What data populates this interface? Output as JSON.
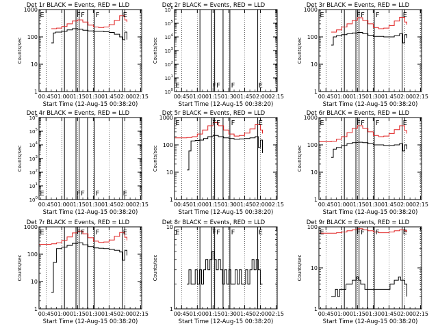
{
  "figure": {
    "xlabel": "Start Time (12-Aug-15 00:38:20)",
    "ylabel": "Counts/sec",
    "x_ticks": [
      "00:45",
      "01:00",
      "01:15",
      "01:30",
      "01:45",
      "02:00",
      "02:15"
    ],
    "x_tick_minutes": [
      45,
      60,
      75,
      90,
      105,
      120,
      135
    ],
    "x_range_minutes": [
      38.3,
      136
    ],
    "event_line_minutes": [
      62.5,
      73.5,
      76.5,
      84.5,
      91.0,
      117.5
    ],
    "event_letters": [
      {
        "letter": "E",
        "minute": 38.5
      },
      {
        "letter": "F",
        "minute": 73.5
      },
      {
        "letter": "F",
        "minute": 77.5
      },
      {
        "letter": "F",
        "minute": 91.5
      },
      {
        "letter": "E",
        "minute": 117.5
      }
    ],
    "colors": {
      "events": "#000000",
      "lld": "#e02020",
      "axes": "#000000"
    }
  },
  "chart_data": [
    {
      "type": "line",
      "title": "Det 1r BLACK = Events, RED = LLD",
      "ylabel": "Counts/sec",
      "xlabel": "Start Time (12-Aug-15 00:38:20)",
      "yscale": "log",
      "ylim": [
        1,
        1000
      ],
      "y_tick_labels": [
        "1",
        "10",
        "100",
        "1000"
      ],
      "series": [
        {
          "name": "Events",
          "color": "#000000",
          "x": [
            50,
            52,
            54,
            60,
            65,
            70,
            75,
            80,
            85,
            90,
            95,
            100,
            105,
            110,
            115,
            118,
            120,
            122
          ],
          "y": [
            60,
            140,
            150,
            160,
            180,
            200,
            190,
            175,
            165,
            160,
            160,
            155,
            145,
            125,
            100,
            80,
            150,
            80
          ]
        },
        {
          "name": "LLD",
          "color": "#e02020",
          "x": [
            50,
            55,
            60,
            65,
            70,
            75,
            80,
            85,
            90,
            95,
            100,
            105,
            110,
            115,
            120,
            122
          ],
          "y": [
            200,
            210,
            240,
            300,
            380,
            420,
            350,
            270,
            230,
            220,
            230,
            280,
            400,
            600,
            420,
            350
          ]
        }
      ]
    },
    {
      "type": "line",
      "title": "Det 2r BLACK = Events, RED = LLD",
      "ylabel": "Counts/sec",
      "xlabel": "Start Time (12-Aug-15 00:38:20)",
      "yscale": "log",
      "ylim": [
        1,
        1000000
      ],
      "y_tick_labels": [
        "10^0",
        "10^1",
        "10^2",
        "10^3",
        "10^4",
        "10^5",
        "10^6"
      ],
      "series": []
    },
    {
      "type": "line",
      "title": "Det 3r BLACK = Events, RED = LLD",
      "ylabel": "Counts/sec",
      "xlabel": "Start Time (12-Aug-15 00:38:20)",
      "yscale": "log",
      "ylim": [
        1,
        1000
      ],
      "y_tick_labels": [
        "1",
        "10",
        "100",
        "1000"
      ],
      "series": [
        {
          "name": "Events",
          "color": "#000000",
          "x": [
            50,
            52,
            55,
            60,
            65,
            70,
            75,
            80,
            85,
            90,
            95,
            100,
            105,
            110,
            115,
            118,
            120,
            122
          ],
          "y": [
            50,
            100,
            110,
            120,
            130,
            140,
            145,
            130,
            115,
            105,
            105,
            100,
            100,
            110,
            130,
            60,
            120,
            90
          ]
        },
        {
          "name": "LLD",
          "color": "#e02020",
          "x": [
            50,
            55,
            60,
            65,
            70,
            75,
            80,
            85,
            90,
            95,
            100,
            105,
            110,
            115,
            120,
            122
          ],
          "y": [
            150,
            180,
            230,
            300,
            400,
            500,
            400,
            300,
            220,
            200,
            210,
            260,
            380,
            520,
            350,
            280
          ]
        }
      ]
    },
    {
      "type": "line",
      "title": "Det 4r BLACK = Events, RED = LLD",
      "ylabel": "Counts/sec",
      "xlabel": "Start Time (12-Aug-15 00:38:20)",
      "yscale": "log",
      "ylim": [
        1,
        1000000
      ],
      "y_tick_labels": [
        "10^0",
        "10^1",
        "10^2",
        "10^3",
        "10^4",
        "10^5",
        "10^6"
      ],
      "series": []
    },
    {
      "type": "line",
      "title": "Det 5r BLACK = Events, RED = LLD",
      "ylabel": "Counts/sec",
      "xlabel": "Start Time (12-Aug-15 00:38:20)",
      "yscale": "log",
      "ylim": [
        1,
        1000
      ],
      "y_tick_labels": [
        "1",
        "10",
        "100",
        "1000"
      ],
      "series": [
        {
          "name": "Events",
          "color": "#000000",
          "x": [
            50,
            52,
            54,
            58,
            62,
            66,
            70,
            75,
            80,
            85,
            90,
            95,
            100,
            105,
            110,
            115,
            118,
            120,
            122
          ],
          "y": [
            12,
            60,
            140,
            145,
            150,
            170,
            200,
            220,
            200,
            180,
            170,
            160,
            165,
            170,
            180,
            200,
            80,
            150,
            50
          ]
        },
        {
          "name": "LLD",
          "color": "#e02020",
          "x": [
            38.5,
            45,
            50,
            55,
            60,
            65,
            70,
            75,
            80,
            85,
            90,
            95,
            100,
            105,
            110,
            115,
            120,
            122
          ],
          "y": [
            180,
            180,
            185,
            200,
            250,
            350,
            500,
            650,
            500,
            350,
            250,
            210,
            220,
            270,
            380,
            550,
            350,
            260
          ]
        }
      ]
    },
    {
      "type": "line",
      "title": "Det 6r BLACK = Events, RED = LLD",
      "ylabel": "Counts/sec",
      "xlabel": "Start Time (12-Aug-15 00:38:20)",
      "yscale": "log",
      "ylim": [
        1,
        1000
      ],
      "y_tick_labels": [
        "1",
        "10",
        "100",
        "1000"
      ],
      "series": [
        {
          "name": "Events",
          "color": "#000000",
          "x": [
            50,
            52,
            55,
            60,
            65,
            70,
            75,
            80,
            85,
            90,
            95,
            100,
            105,
            110,
            115,
            118,
            120,
            122
          ],
          "y": [
            35,
            70,
            80,
            95,
            110,
            120,
            125,
            120,
            110,
            100,
            100,
            95,
            95,
            100,
            110,
            60,
            100,
            70
          ]
        },
        {
          "name": "LLD",
          "color": "#e02020",
          "x": [
            38.5,
            45,
            50,
            55,
            60,
            65,
            70,
            75,
            80,
            85,
            90,
            95,
            100,
            105,
            110,
            115,
            120,
            122
          ],
          "y": [
            130,
            130,
            135,
            160,
            200,
            280,
            400,
            500,
            400,
            300,
            220,
            200,
            210,
            260,
            360,
            500,
            330,
            260
          ]
        }
      ]
    },
    {
      "type": "line",
      "title": "Det 7r BLACK = Events, RED = LLD",
      "ylabel": "Counts/sec",
      "xlabel": "Start Time (12-Aug-15 00:38:20)",
      "yscale": "log",
      "ylim": [
        1,
        1000
      ],
      "y_tick_labels": [
        "1",
        "10",
        "100",
        "1000"
      ],
      "series": [
        {
          "name": "Events",
          "color": "#000000",
          "x": [
            50,
            52,
            55,
            60,
            65,
            70,
            75,
            80,
            85,
            90,
            95,
            100,
            105,
            110,
            115,
            118,
            120,
            122
          ],
          "y": [
            4,
            50,
            160,
            180,
            210,
            250,
            260,
            220,
            190,
            170,
            165,
            160,
            150,
            140,
            120,
            60,
            140,
            90
          ]
        },
        {
          "name": "LLD",
          "color": "#e02020",
          "x": [
            38.5,
            45,
            50,
            55,
            60,
            65,
            70,
            75,
            80,
            85,
            90,
            95,
            100,
            105,
            110,
            115,
            120,
            122
          ],
          "y": [
            230,
            230,
            240,
            260,
            320,
            430,
            600,
            700,
            560,
            400,
            300,
            270,
            280,
            330,
            450,
            620,
            420,
            320
          ]
        }
      ]
    },
    {
      "type": "line",
      "title": "Det 8r BLACK = Events, RED = LLD",
      "ylabel": "Counts/sec",
      "xlabel": "Start Time (12-Aug-15 00:38:20)",
      "yscale": "log",
      "ylim": [
        1,
        10
      ],
      "y_tick_labels": [
        "1",
        "10"
      ],
      "series": [
        {
          "name": "Events",
          "color": "#000000",
          "x": [
            50,
            52,
            54,
            56,
            58,
            60,
            62,
            64,
            66,
            68,
            70,
            72,
            74,
            76,
            78,
            80,
            82,
            84,
            86,
            88,
            90,
            92,
            94,
            96,
            98,
            100,
            102,
            104,
            106,
            108,
            110,
            112,
            114,
            116,
            118,
            120,
            122
          ],
          "y": [
            2,
            3,
            2,
            2,
            3,
            2,
            3,
            2,
            3,
            4,
            3,
            4,
            5,
            4,
            3,
            4,
            3,
            2,
            3,
            2,
            3,
            2,
            2,
            3,
            2,
            3,
            2,
            2,
            3,
            2,
            3,
            4,
            3,
            4,
            3,
            2,
            2
          ]
        },
        {
          "name": "LLD",
          "color": "#e02020",
          "x": [],
          "y": []
        }
      ]
    },
    {
      "type": "line",
      "title": "Det 9r BLACK = Events, RED = LLD",
      "ylabel": "Counts/sec",
      "xlabel": "Start Time (12-Aug-15 00:38:20)",
      "yscale": "log",
      "ylim": [
        1,
        100
      ],
      "y_tick_labels": [
        "1",
        "10",
        "100"
      ],
      "series": [
        {
          "name": "Events",
          "color": "#000000",
          "x": [
            50,
            52,
            54,
            56,
            58,
            60,
            62,
            64,
            66,
            68,
            70,
            72,
            74,
            76,
            78,
            80,
            82,
            84,
            86,
            88,
            90,
            92,
            94,
            96,
            98,
            100,
            102,
            104,
            106,
            108,
            110,
            112,
            114,
            116,
            118,
            120,
            122
          ],
          "y": [
            2,
            2,
            3,
            2,
            3,
            3,
            3,
            4,
            4,
            4,
            5,
            5,
            6,
            5,
            4,
            4,
            3,
            3,
            3,
            3,
            3,
            3,
            3,
            3,
            3,
            3,
            3,
            3,
            4,
            4,
            5,
            5,
            6,
            5,
            5,
            4,
            2
          ]
        },
        {
          "name": "LLD",
          "color": "#e02020",
          "x": [
            38.5,
            45,
            50,
            55,
            60,
            65,
            70,
            75,
            80,
            85,
            90,
            95,
            100,
            105,
            110,
            115,
            120,
            122
          ],
          "y": [
            70,
            70,
            70,
            72,
            75,
            80,
            85,
            90,
            85,
            80,
            75,
            72,
            72,
            75,
            80,
            85,
            80,
            75
          ]
        }
      ]
    }
  ]
}
